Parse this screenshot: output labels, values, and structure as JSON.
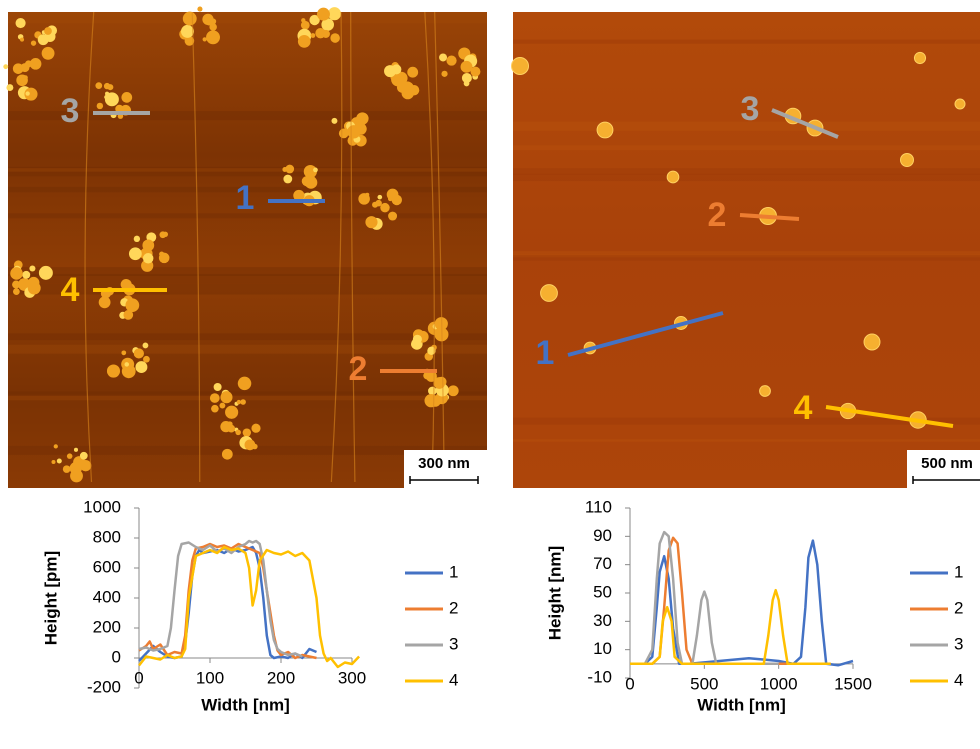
{
  "images": [
    {
      "annotations": [
        {
          "label": "1",
          "color": "#4472c4"
        },
        {
          "label": "2",
          "color": "#ed7d31"
        },
        {
          "label": "3",
          "color": "#a5a5a5"
        },
        {
          "label": "4",
          "color": "#ffc000"
        }
      ],
      "scale_bar": "300 nm"
    },
    {
      "annotations": [
        {
          "label": "1",
          "color": "#4472c4"
        },
        {
          "label": "2",
          "color": "#ed7d31"
        },
        {
          "label": "3",
          "color": "#a5a5a5"
        },
        {
          "label": "4",
          "color": "#ffc000"
        }
      ],
      "scale_bar": "500 nm"
    }
  ],
  "chart_data": [
    {
      "type": "line",
      "xlabel": "Width [nm]",
      "ylabel": "Height [pm]",
      "xlim": [
        0,
        300
      ],
      "xticks": [
        0,
        100,
        200,
        300
      ],
      "ylim": [
        -200,
        1000
      ],
      "yticks": [
        -200,
        0,
        200,
        400,
        600,
        800,
        1000
      ],
      "legend": "right",
      "series": [
        {
          "name": "1",
          "color": "#4472c4",
          "x": [
            0,
            10,
            20,
            30,
            40,
            50,
            60,
            65,
            70,
            75,
            80,
            85,
            90,
            100,
            110,
            120,
            130,
            140,
            150,
            160,
            165,
            170,
            175,
            180,
            185,
            190,
            200,
            210,
            220,
            230,
            240,
            250
          ],
          "values": [
            -20,
            30,
            80,
            40,
            10,
            0,
            10,
            100,
            300,
            550,
            680,
            720,
            700,
            710,
            720,
            700,
            730,
            710,
            720,
            740,
            700,
            600,
            400,
            150,
            20,
            0,
            10,
            0,
            30,
            0,
            60,
            40
          ]
        },
        {
          "name": "2",
          "color": "#ed7d31",
          "x": [
            0,
            10,
            15,
            20,
            30,
            40,
            50,
            60,
            65,
            70,
            75,
            80,
            90,
            100,
            110,
            120,
            130,
            140,
            150,
            160,
            170,
            175,
            180,
            185,
            190,
            195,
            200,
            210,
            220,
            230,
            240,
            250
          ],
          "values": [
            50,
            80,
            110,
            60,
            90,
            20,
            40,
            30,
            150,
            450,
            650,
            730,
            740,
            760,
            740,
            750,
            730,
            760,
            740,
            720,
            700,
            600,
            450,
            300,
            150,
            50,
            20,
            40,
            0,
            20,
            10,
            0
          ]
        },
        {
          "name": "3",
          "color": "#a5a5a5",
          "x": [
            0,
            10,
            20,
            30,
            40,
            45,
            50,
            55,
            60,
            70,
            80,
            90,
            100,
            110,
            120,
            130,
            140,
            150,
            155,
            160,
            165,
            170,
            175,
            180,
            185,
            190,
            195,
            200,
            210,
            220,
            230
          ],
          "values": [
            60,
            70,
            50,
            60,
            80,
            200,
            450,
            680,
            760,
            770,
            740,
            720,
            750,
            710,
            730,
            700,
            740,
            760,
            780,
            770,
            780,
            760,
            650,
            450,
            250,
            120,
            60,
            40,
            20,
            30,
            10
          ]
        },
        {
          "name": "4",
          "color": "#ffc000",
          "x": [
            0,
            10,
            20,
            30,
            40,
            50,
            60,
            65,
            70,
            80,
            90,
            100,
            110,
            120,
            130,
            140,
            150,
            155,
            160,
            165,
            170,
            180,
            190,
            200,
            210,
            220,
            230,
            240,
            250,
            255,
            260,
            265,
            270,
            280,
            290,
            300,
            310
          ],
          "values": [
            -50,
            10,
            0,
            -10,
            20,
            0,
            10,
            60,
            400,
            680,
            700,
            720,
            700,
            740,
            720,
            730,
            700,
            600,
            350,
            450,
            650,
            720,
            700,
            690,
            710,
            680,
            700,
            650,
            400,
            150,
            30,
            -20,
            0,
            -60,
            -30,
            -40,
            10
          ]
        }
      ]
    },
    {
      "type": "line",
      "xlabel": "Width [nm]",
      "ylabel": "Height [nm]",
      "xlim": [
        0,
        1500
      ],
      "xticks": [
        0,
        500,
        1000,
        1500
      ],
      "ylim": [
        -10,
        110
      ],
      "yticks": [
        -10,
        10,
        30,
        50,
        70,
        90,
        110
      ],
      "legend": "right",
      "series": [
        {
          "name": "1",
          "color": "#4472c4",
          "x": [
            0,
            100,
            150,
            180,
            200,
            230,
            260,
            290,
            330,
            400,
            600,
            800,
            1000,
            1100,
            1150,
            1180,
            1200,
            1230,
            1260,
            1290,
            1320,
            1400,
            1500
          ],
          "values": [
            0,
            0,
            5,
            40,
            65,
            76,
            60,
            25,
            0,
            0,
            2,
            4,
            2,
            0,
            5,
            40,
            75,
            87,
            70,
            30,
            0,
            -1,
            2
          ]
        },
        {
          "name": "2",
          "color": "#ed7d31",
          "x": [
            0,
            150,
            200,
            230,
            260,
            290,
            320,
            350,
            380,
            420,
            600,
            1000,
            1350
          ],
          "values": [
            0,
            0,
            5,
            40,
            80,
            89,
            85,
            50,
            10,
            0,
            0,
            0,
            0
          ]
        },
        {
          "name": "3",
          "color": "#a5a5a5",
          "x": [
            0,
            100,
            150,
            180,
            200,
            230,
            260,
            290,
            320,
            350,
            420,
            450,
            480,
            500,
            520,
            550,
            580,
            700,
            1000
          ],
          "values": [
            0,
            0,
            10,
            60,
            85,
            93,
            90,
            60,
            15,
            0,
            0,
            20,
            45,
            51,
            45,
            15,
            0,
            0,
            0
          ]
        },
        {
          "name": "4",
          "color": "#ffc000",
          "x": [
            0,
            150,
            200,
            220,
            250,
            280,
            300,
            350,
            900,
            930,
            960,
            980,
            1000,
            1030,
            1060,
            1100,
            1350
          ],
          "values": [
            0,
            0,
            5,
            30,
            40,
            30,
            5,
            0,
            0,
            20,
            45,
            52,
            45,
            20,
            0,
            0,
            0
          ]
        }
      ]
    }
  ]
}
